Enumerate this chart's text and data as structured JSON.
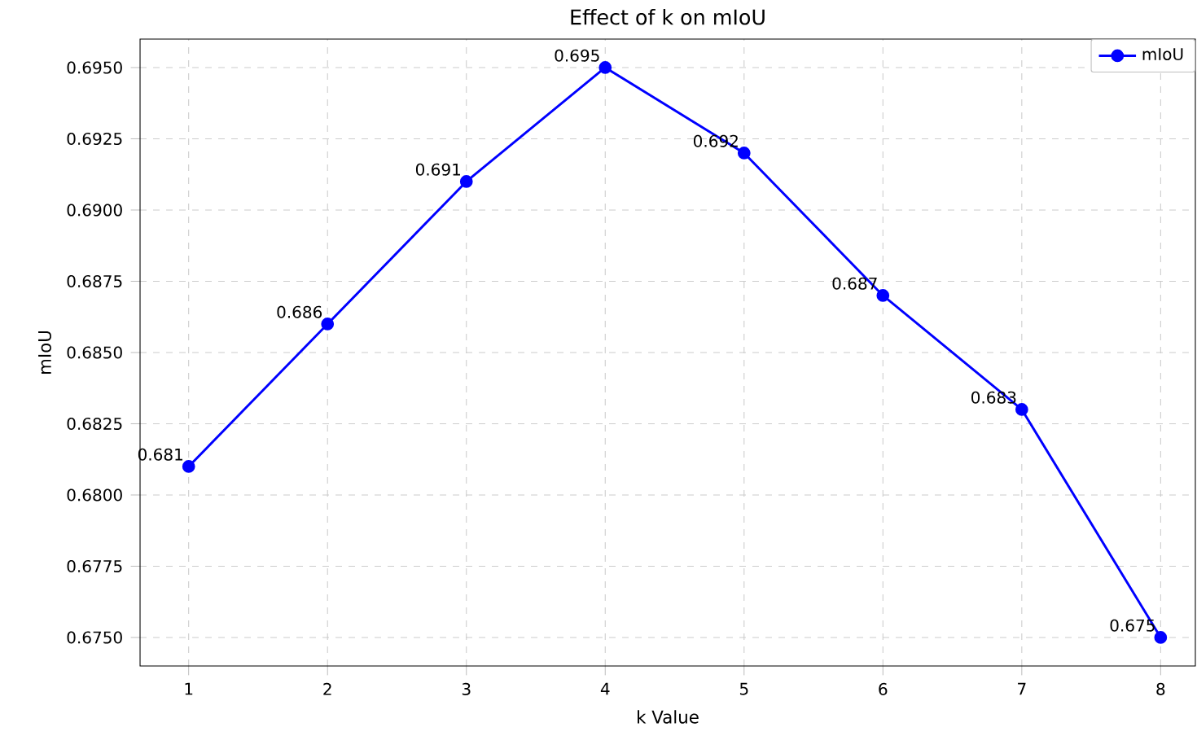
{
  "chart_data": {
    "type": "line",
    "title": "Effect of k on mIoU",
    "xlabel": "k Value",
    "ylabel": "mIoU",
    "x": [
      1,
      2,
      3,
      4,
      5,
      6,
      7,
      8
    ],
    "series": [
      {
        "name": "mIoU",
        "color": "#0000ff",
        "values": [
          0.681,
          0.686,
          0.691,
          0.695,
          0.692,
          0.687,
          0.683,
          0.675
        ]
      }
    ],
    "xlim": [
      0.65,
      8.25
    ],
    "ylim": [
      0.674,
      0.696
    ],
    "xticks": [
      1,
      2,
      3,
      4,
      5,
      6,
      7,
      8
    ],
    "yticks": [
      {
        "value": 0.675,
        "label": "0.6750"
      },
      {
        "value": 0.6775,
        "label": "0.6775"
      },
      {
        "value": 0.68,
        "label": "0.6800"
      },
      {
        "value": 0.6825,
        "label": "0.6825"
      },
      {
        "value": 0.685,
        "label": "0.6850"
      },
      {
        "value": 0.6875,
        "label": "0.6875"
      },
      {
        "value": 0.69,
        "label": "0.6900"
      },
      {
        "value": 0.6925,
        "label": "0.6925"
      },
      {
        "value": 0.695,
        "label": "0.6950"
      }
    ],
    "grid": true,
    "legend": "top right",
    "marker": "circle",
    "line_style": "solid",
    "data_labels": true
  }
}
